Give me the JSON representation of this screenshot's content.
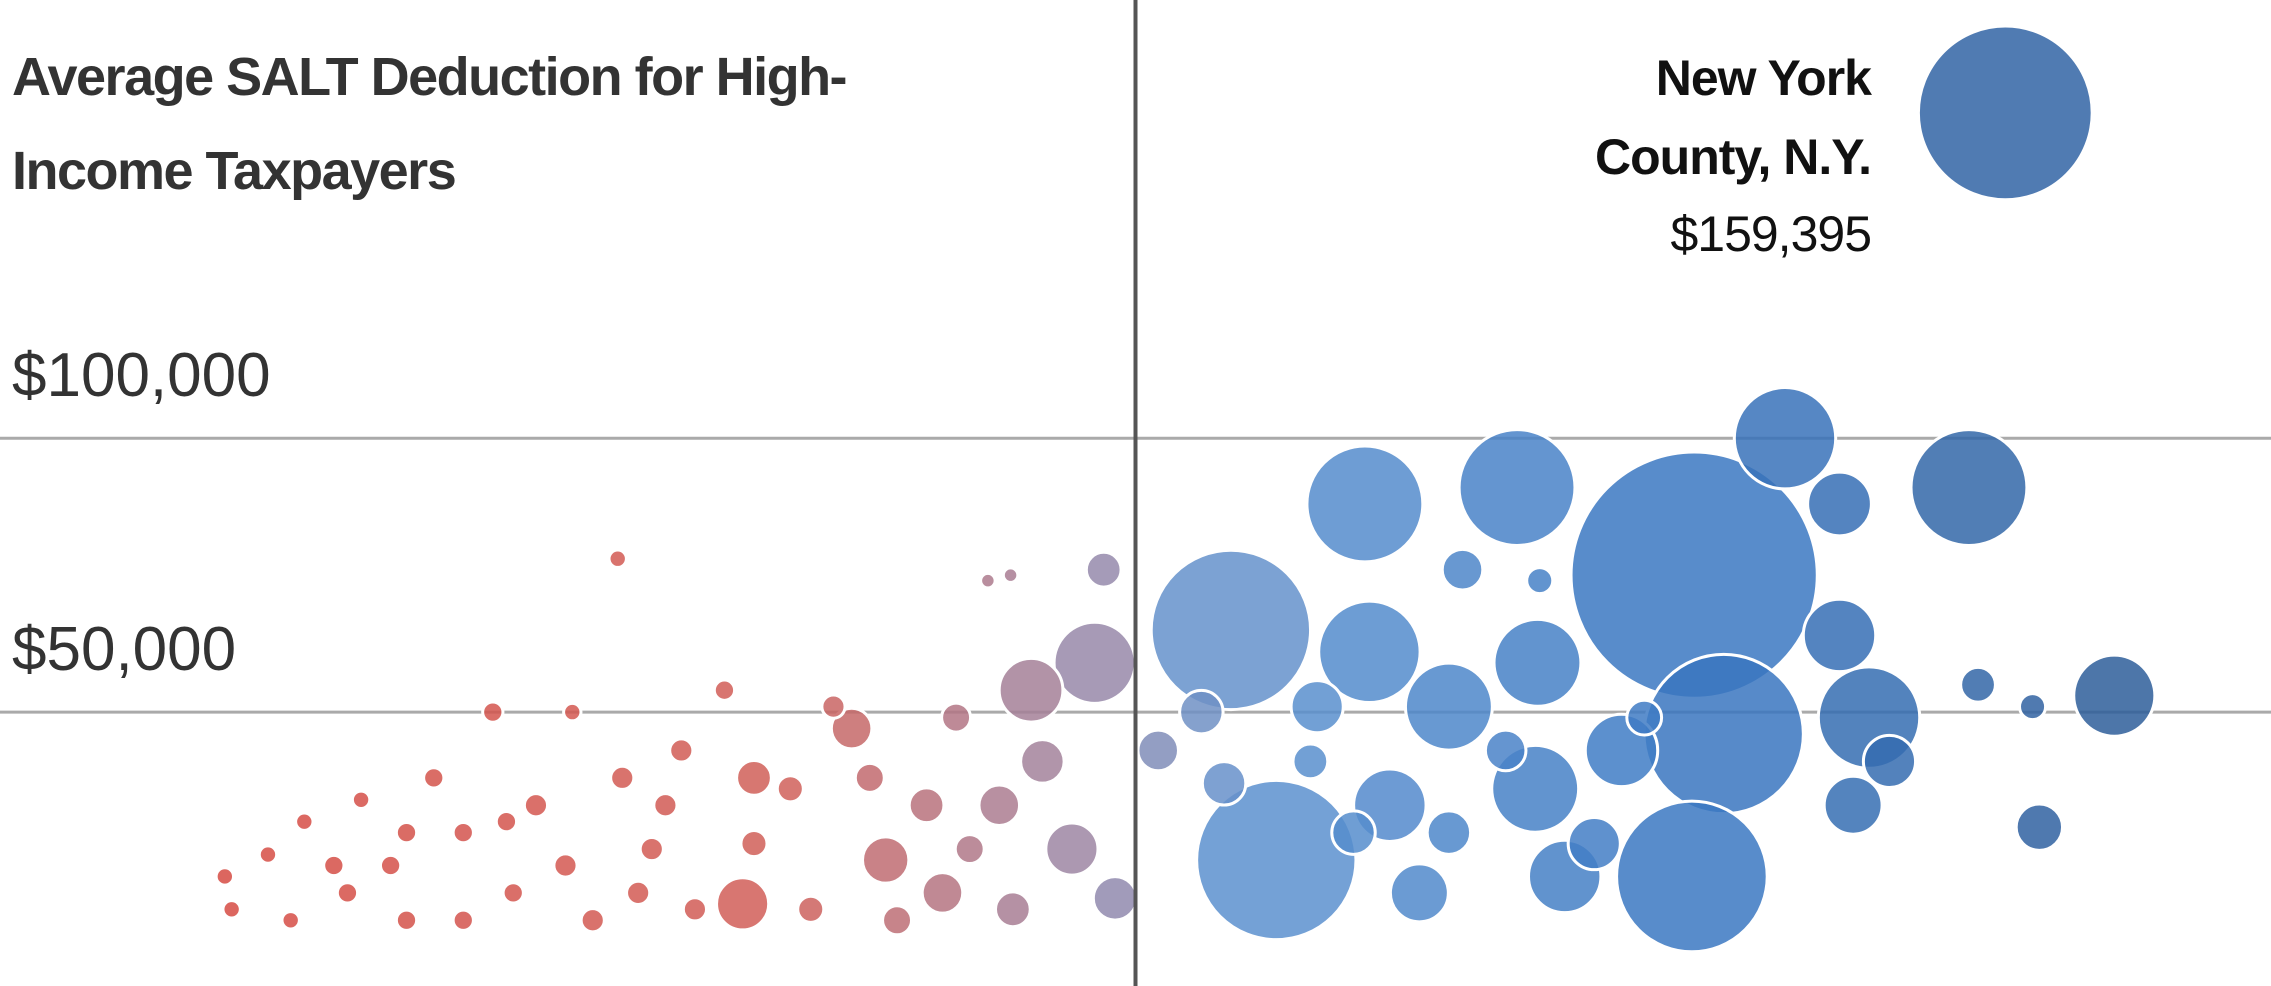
{
  "chart_data": {
    "type": "bubble",
    "title": "Average SALT Deduction for High-Income Taxpayers",
    "xlim": [
      0,
      100
    ],
    "ylim": [
      0,
      180000
    ],
    "yticks": [
      {
        "value": 100000,
        "label": "$100,000"
      },
      {
        "value": 50000,
        "label": "$50,000"
      }
    ],
    "grid": true,
    "reference_x": 50,
    "color_stops": [
      {
        "at": 0,
        "color": "#d9433a"
      },
      {
        "at": 35,
        "color": "#d0605a"
      },
      {
        "at": 48,
        "color": "#9a88a8"
      },
      {
        "at": 55,
        "color": "#5e93d0"
      },
      {
        "at": 75,
        "color": "#3a77c2"
      },
      {
        "at": 95,
        "color": "#2d5b96"
      }
    ],
    "annotation": {
      "label": [
        "New York",
        "County, N.Y."
      ],
      "value": 159395,
      "value_label": "$159,395"
    },
    "x": [
      9.9,
      10.2,
      11.8,
      12.8,
      13.4,
      14.7,
      15.3,
      15.9,
      17.2,
      17.9,
      17.9,
      19.1,
      20.4,
      20.4,
      21.7,
      22.3,
      22.6,
      23.6,
      24.9,
      25.2,
      26.1,
      27.4,
      28.1,
      28.7,
      29.3,
      30.0,
      30.6,
      31.9,
      33.2,
      34.8,
      35.7,
      36.7,
      38.3,
      39.5,
      42.1,
      42.7,
      27.2,
      43.5,
      44.5,
      32.7,
      39.0,
      33.2,
      37.5,
      40.8,
      44.0,
      41.5,
      44.6,
      48.2,
      45.4,
      48.6,
      47.2,
      49.1,
      45.9,
      51.0,
      52.9,
      53.9,
      54.2,
      56.2,
      57.7,
      58.0,
      59.6,
      60.1,
      60.3,
      61.2,
      62.5,
      63.8,
      63.8,
      64.4,
      66.3,
      66.8,
      67.6,
      67.7,
      67.8,
      68.9,
      70.2,
      71.4,
      72.4,
      74.5,
      74.6,
      75.9,
      78.6,
      81.0,
      81.0,
      81.6,
      82.3,
      83.2,
      86.7,
      87.1,
      88.3,
      89.5,
      89.8,
      93.1
    ],
    "values": [
      20000,
      14000,
      24000,
      12000,
      30000,
      22000,
      17000,
      34000,
      22000,
      12000,
      28000,
      38000,
      28000,
      12000,
      50000,
      30000,
      17000,
      33000,
      22000,
      50000,
      12000,
      38000,
      17000,
      25000,
      33000,
      43000,
      14000,
      54000,
      26000,
      36000,
      14000,
      51000,
      38000,
      12000,
      49000,
      25000,
      78000,
      74000,
      75000,
      15000,
      23000,
      38000,
      47000,
      33000,
      33000,
      17000,
      14000,
      59000,
      54000,
      76000,
      25000,
      16000,
      41000,
      43000,
      50000,
      37000,
      65000,
      23000,
      41000,
      51000,
      28000,
      88000,
      61000,
      33000,
      17000,
      51000,
      28000,
      76000,
      43000,
      91000,
      36000,
      59000,
      74000,
      20000,
      26000,
      43000,
      49000,
      20000,
      75000,
      46000,
      100000,
      88000,
      64000,
      33000,
      49000,
      41000,
      91000,
      55000,
      159395,
      51000,
      29000,
      53000
    ],
    "sizes": [
      6,
      6,
      6,
      6,
      6,
      7,
      7,
      6,
      7,
      7,
      7,
      7,
      7,
      7,
      7,
      7,
      7,
      8,
      8,
      6,
      8,
      8,
      8,
      8,
      8,
      8,
      8,
      7,
      9,
      9,
      9,
      8,
      10,
      10,
      10,
      10,
      6,
      5,
      5,
      18,
      16,
      12,
      14,
      12,
      14,
      14,
      12,
      28,
      22,
      12,
      18,
      15,
      15,
      14,
      15,
      15,
      55,
      55,
      12,
      18,
      15,
      40,
      35,
      25,
      20,
      30,
      15,
      14,
      14,
      40,
      30,
      30,
      9,
      25,
      18,
      25,
      12,
      52,
      85,
      55,
      35,
      22,
      25,
      20,
      35,
      18,
      40,
      12,
      60,
      9,
      16,
      28
    ]
  }
}
